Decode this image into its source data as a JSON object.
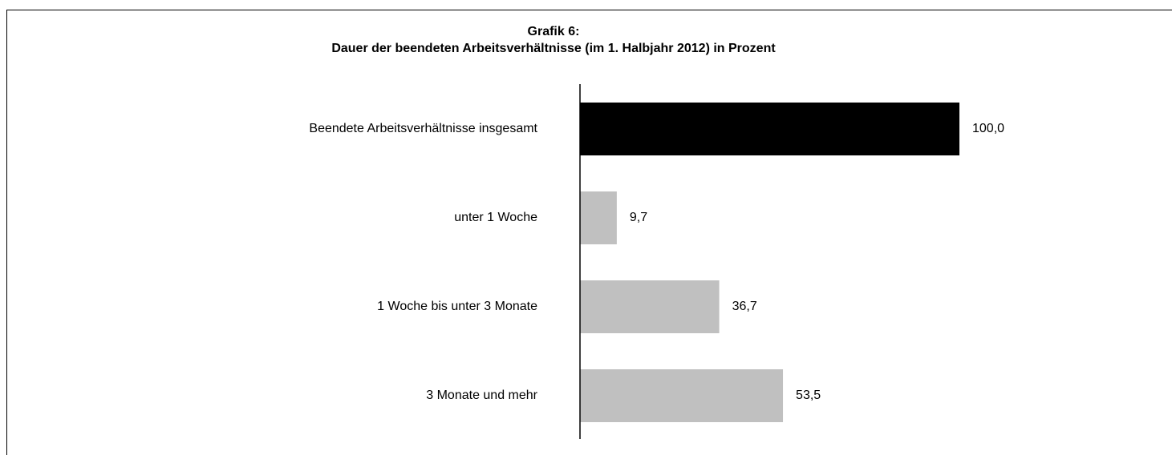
{
  "chart_data": {
    "type": "bar",
    "orientation": "horizontal",
    "title": "Grafik 6:",
    "subtitle": "Dauer der beendeten Arbeitsverhältnisse (im 1. Halbjahr 2012) in Prozent",
    "categories": [
      "Beendete Arbeitsverhältnisse insgesamt",
      "unter 1 Woche",
      "1 Woche bis unter 3 Monate",
      "3 Monate und mehr"
    ],
    "values": [
      100.0,
      9.7,
      36.7,
      53.5
    ],
    "value_labels": [
      "100,0",
      "9,7",
      "36,7",
      "53,5"
    ],
    "colors": [
      "#000000",
      "#c0c0c0",
      "#c0c0c0",
      "#c0c0c0"
    ],
    "xlim": [
      0,
      100
    ]
  }
}
